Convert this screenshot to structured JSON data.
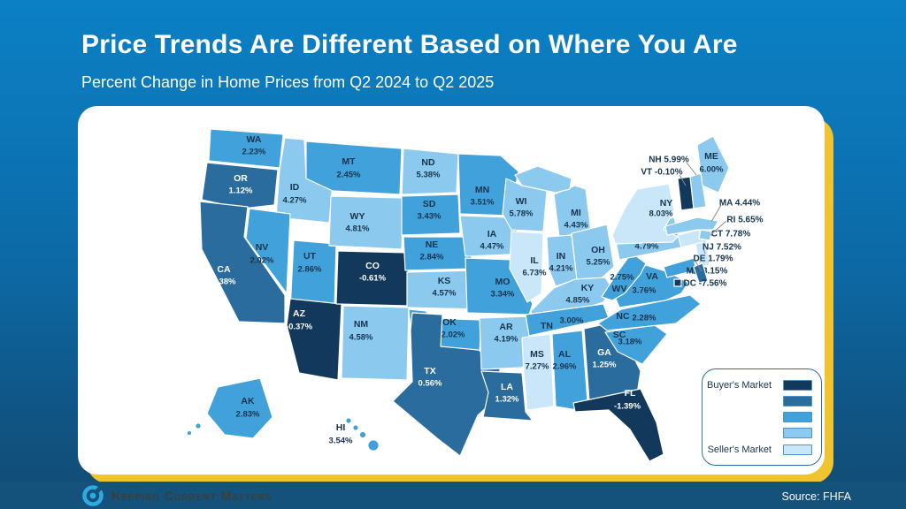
{
  "header": {
    "title": "Price Trends Are Different Based on Where You Are",
    "subtitle": "Percent Change in Home Prices from Q2 2024 to Q2 2025"
  },
  "colors": {
    "bins": [
      "#12395b",
      "#2a6c9e",
      "#41a1da",
      "#8bc9ef",
      "#c9e7f9"
    ],
    "accent_yellow": "#efc42f",
    "card_bg": "#ffffff",
    "dark_label": "#17344f",
    "footer_bar": "#14527b"
  },
  "chart_data": {
    "type": "choropleth-map",
    "title": "Percent Change in Home Prices from Q2 2024 to Q2 2025",
    "unit": "%",
    "legend": {
      "top": "Buyer's Market",
      "bottom": "Seller's Market",
      "levels": 5,
      "order": "darkest (buyer) to lightest (seller)"
    },
    "states": [
      {
        "abbr": "WA",
        "pct": 2.23,
        "bin": 3
      },
      {
        "abbr": "OR",
        "pct": 1.12,
        "bin": 2
      },
      {
        "abbr": "CA",
        "pct": 0.38,
        "bin": 2
      },
      {
        "abbr": "ID",
        "pct": 4.27,
        "bin": 4
      },
      {
        "abbr": "NV",
        "pct": 2.02,
        "bin": 3
      },
      {
        "abbr": "UT",
        "pct": 2.86,
        "bin": 3
      },
      {
        "abbr": "AZ",
        "pct": -0.37,
        "bin": 1
      },
      {
        "abbr": "MT",
        "pct": 2.45,
        "bin": 3
      },
      {
        "abbr": "WY",
        "pct": 4.81,
        "bin": 4
      },
      {
        "abbr": "CO",
        "pct": -0.61,
        "bin": 1
      },
      {
        "abbr": "NM",
        "pct": 4.58,
        "bin": 4
      },
      {
        "abbr": "ND",
        "pct": 5.38,
        "bin": 4
      },
      {
        "abbr": "SD",
        "pct": 3.43,
        "bin": 3
      },
      {
        "abbr": "NE",
        "pct": 2.84,
        "bin": 3
      },
      {
        "abbr": "KS",
        "pct": 4.57,
        "bin": 4
      },
      {
        "abbr": "OK",
        "pct": 2.02,
        "bin": 3
      },
      {
        "abbr": "TX",
        "pct": 0.56,
        "bin": 2
      },
      {
        "abbr": "MN",
        "pct": 3.51,
        "bin": 3
      },
      {
        "abbr": "IA",
        "pct": 4.47,
        "bin": 4
      },
      {
        "abbr": "MO",
        "pct": 3.34,
        "bin": 3
      },
      {
        "abbr": "AR",
        "pct": 4.19,
        "bin": 4
      },
      {
        "abbr": "LA",
        "pct": 1.32,
        "bin": 2
      },
      {
        "abbr": "WI",
        "pct": 5.78,
        "bin": 4
      },
      {
        "abbr": "IL",
        "pct": 6.73,
        "bin": 5
      },
      {
        "abbr": "MS",
        "pct": 7.27,
        "bin": 5
      },
      {
        "abbr": "MI",
        "pct": 4.43,
        "bin": 4
      },
      {
        "abbr": "IN",
        "pct": 4.21,
        "bin": 4
      },
      {
        "abbr": "OH",
        "pct": 5.25,
        "bin": 4
      },
      {
        "abbr": "KY",
        "pct": 4.85,
        "bin": 4
      },
      {
        "abbr": "TN",
        "pct": 3.0,
        "bin": 3
      },
      {
        "abbr": "AL",
        "pct": 2.96,
        "bin": 3
      },
      {
        "abbr": "GA",
        "pct": 1.25,
        "bin": 2
      },
      {
        "abbr": "FL",
        "pct": -1.39,
        "bin": 1
      },
      {
        "abbr": "SC",
        "pct": 3.18,
        "bin": 3
      },
      {
        "abbr": "NC",
        "pct": 2.28,
        "bin": 3
      },
      {
        "abbr": "VA",
        "pct": 3.76,
        "bin": 3
      },
      {
        "abbr": "WV",
        "pct": 2.75,
        "bin": 3
      },
      {
        "abbr": "PA",
        "pct": 4.79,
        "bin": 4
      },
      {
        "abbr": "NY",
        "pct": 8.03,
        "bin": 5
      },
      {
        "abbr": "NJ",
        "pct": 7.52,
        "bin": 5
      },
      {
        "abbr": "CT",
        "pct": 7.78,
        "bin": 5
      },
      {
        "abbr": "RI",
        "pct": 5.65,
        "bin": 4
      },
      {
        "abbr": "MA",
        "pct": 4.44,
        "bin": 4
      },
      {
        "abbr": "VT",
        "pct": -0.1,
        "bin": 1
      },
      {
        "abbr": "NH",
        "pct": 5.99,
        "bin": 4
      },
      {
        "abbr": "ME",
        "pct": 6.0,
        "bin": 4
      },
      {
        "abbr": "MD",
        "pct": 3.15,
        "bin": 3
      },
      {
        "abbr": "DE",
        "pct": 1.79,
        "bin": 2
      },
      {
        "abbr": "DC",
        "pct": -7.56,
        "bin": 1
      },
      {
        "abbr": "AK",
        "pct": 2.83,
        "bin": 3
      },
      {
        "abbr": "HI",
        "pct": 3.54,
        "bin": 3
      }
    ]
  },
  "legend": {
    "top_label": "Buyer's Market",
    "bottom_label": "Seller's Market"
  },
  "footer": {
    "brand": "Keeping Current Matters",
    "source": "Source: FHFA"
  }
}
